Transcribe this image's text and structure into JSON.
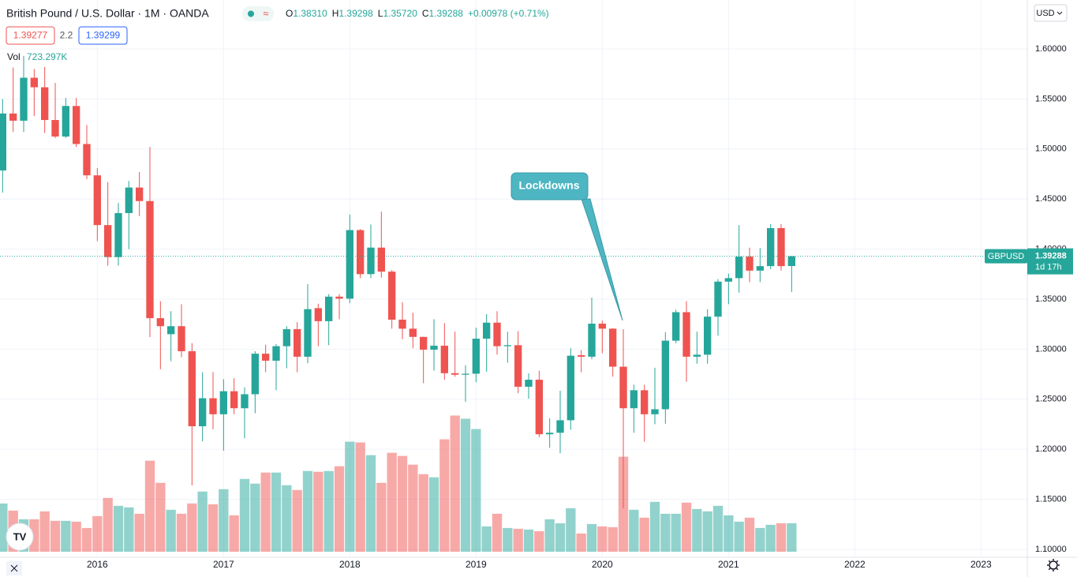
{
  "header": {
    "symbol": "British Pound / U.S. Dollar · 1M · OANDA",
    "ohlc": [
      {
        "key": "O",
        "value": "1.38310"
      },
      {
        "key": "H",
        "value": "1.39298"
      },
      {
        "key": "L",
        "value": "1.35720"
      },
      {
        "key": "C",
        "value": "1.39288"
      }
    ],
    "change": "+0.00978 (+0.71%)",
    "bid": "1.39277",
    "spread": "2.2",
    "ask": "1.39299",
    "volume_label": "Vol",
    "volume_value": "723.297K",
    "currency": "USD",
    "price_tag": {
      "symbol": "GBPUSD",
      "price": "1.39288",
      "countdown": "1d 17h"
    }
  },
  "chart_data": {
    "type": "candlestick",
    "annotation": "Lockdowns",
    "up_color": "#26a69a",
    "down_color": "#ef5350",
    "open": [
      1.4786,
      1.5355,
      1.5283,
      1.5712,
      1.5617,
      1.529,
      1.5125,
      1.543,
      1.505,
      1.4737,
      1.424,
      1.392,
      1.436,
      1.4615,
      1.448,
      1.331,
      1.315,
      1.323,
      1.298,
      1.223,
      1.251,
      1.235,
      1.258,
      1.241,
      1.255,
      1.2955,
      1.2885,
      1.303,
      1.32,
      1.2925,
      1.341,
      1.328,
      1.3525,
      1.3505,
      1.419,
      1.375,
      1.4015,
      1.3775,
      1.3295,
      1.3205,
      1.3123,
      1.2995,
      1.3035,
      1.276,
      1.2745,
      1.2755,
      1.3105,
      1.3265,
      1.303,
      1.304,
      1.2625,
      1.2695,
      1.215,
      1.2165,
      1.229,
      1.294,
      1.2925,
      1.3255,
      1.3205,
      1.2825,
      1.241,
      1.259,
      1.235,
      1.24,
      1.3085,
      1.337,
      1.2925,
      1.2945,
      1.3325,
      1.3675,
      1.371,
      1.3925,
      1.3785,
      1.383,
      1.421,
      1.3831
    ],
    "high": [
      1.5498,
      1.5815,
      1.593,
      1.58,
      1.582,
      1.566,
      1.551,
      1.551,
      1.524,
      1.481,
      1.467,
      1.446,
      1.468,
      1.477,
      1.502,
      1.348,
      1.338,
      1.345,
      1.306,
      1.277,
      1.277,
      1.27,
      1.271,
      1.262,
      1.298,
      1.3045,
      1.305,
      1.323,
      1.327,
      1.365,
      1.3455,
      1.355,
      1.355,
      1.4345,
      1.42,
      1.4245,
      1.4375,
      1.379,
      1.347,
      1.3365,
      1.3125,
      1.33,
      1.326,
      1.3175,
      1.284,
      1.3215,
      1.335,
      1.338,
      1.3175,
      1.318,
      1.276,
      1.2785,
      1.231,
      1.2585,
      1.301,
      1.299,
      1.3515,
      1.3285,
      1.321,
      1.32,
      1.2645,
      1.2645,
      1.2815,
      1.317,
      1.3395,
      1.348,
      1.3175,
      1.34,
      1.37,
      1.3755,
      1.424,
      1.4015,
      1.401,
      1.425,
      1.425,
      1.39298
    ],
    "low": [
      1.4565,
      1.517,
      1.517,
      1.533,
      1.516,
      1.511,
      1.511,
      1.502,
      1.47,
      1.408,
      1.3835,
      1.3835,
      1.4,
      1.433,
      1.312,
      1.28,
      1.288,
      1.292,
      1.164,
      1.208,
      1.22,
      1.1985,
      1.235,
      1.211,
      1.236,
      1.277,
      1.259,
      1.281,
      1.277,
      1.286,
      1.303,
      1.304,
      1.33,
      1.346,
      1.371,
      1.371,
      1.3715,
      1.3205,
      1.31,
      1.301,
      1.266,
      1.2785,
      1.2695,
      1.2725,
      1.2475,
      1.267,
      1.2775,
      1.2945,
      1.2865,
      1.256,
      1.2505,
      1.212,
      1.2015,
      1.196,
      1.2195,
      1.277,
      1.29,
      1.296,
      1.2725,
      1.141,
      1.2165,
      1.2075,
      1.225,
      1.2255,
      1.306,
      1.2675,
      1.2855,
      1.2855,
      1.3135,
      1.345,
      1.3565,
      1.367,
      1.367,
      1.38,
      1.3785,
      1.3572
    ],
    "close": [
      1.5355,
      1.5283,
      1.5712,
      1.5617,
      1.529,
      1.5125,
      1.543,
      1.505,
      1.4737,
      1.424,
      1.392,
      1.436,
      1.4615,
      1.448,
      1.331,
      1.323,
      1.323,
      1.298,
      1.223,
      1.251,
      1.235,
      1.258,
      1.241,
      1.255,
      1.2955,
      1.2885,
      1.303,
      1.32,
      1.2925,
      1.34,
      1.328,
      1.3525,
      1.3505,
      1.419,
      1.375,
      1.4015,
      1.3775,
      1.3295,
      1.3205,
      1.3123,
      1.2995,
      1.3035,
      1.276,
      1.2745,
      1.2755,
      1.3105,
      1.3265,
      1.303,
      1.304,
      1.2625,
      1.2695,
      1.215,
      1.2165,
      1.229,
      1.2935,
      1.2925,
      1.3255,
      1.3205,
      1.2825,
      1.241,
      1.259,
      1.235,
      1.24,
      1.3085,
      1.337,
      1.2925,
      1.2945,
      1.3325,
      1.3675,
      1.371,
      1.3925,
      1.3785,
      1.383,
      1.421,
      1.383,
      1.39288
    ],
    "volume": [
      1225000,
      1045000,
      824000,
      824000,
      1025000,
      784000,
      784000,
      763000,
      603000,
      904000,
      1366000,
      1165000,
      1125000,
      964000,
      2310000,
      1748000,
      1065000,
      964000,
      1225000,
      1527000,
      1205000,
      1587000,
      924000,
      1848000,
      1728000,
      2009000,
      2009000,
      1688000,
      1567000,
      2049000,
      2029000,
      2049000,
      2170000,
      2793000,
      2773000,
      2451000,
      1748000,
      2511000,
      2431000,
      2210000,
      1969000,
      1889000,
      2853000,
      3456000,
      3375000,
      3114000,
      643000,
      964000,
      603000,
      583000,
      563000,
      522000,
      824000,
      723000,
      1105000,
      462000,
      703000,
      643000,
      623000,
      2411000,
      1065000,
      864000,
      1266000,
      964000,
      964000,
      1246000,
      1085000,
      1025000,
      1165000,
      924000,
      763000,
      864000,
      603000,
      683000,
      723000,
      723297
    ],
    "xlim": [
      -0.25,
      97.4
    ],
    "xticks": [
      {
        "value": 9,
        "label": "2016"
      },
      {
        "value": 21,
        "label": "2017"
      },
      {
        "value": 33,
        "label": "2018"
      },
      {
        "value": 45,
        "label": "2019"
      },
      {
        "value": 57,
        "label": "2020"
      },
      {
        "value": 69,
        "label": "2021"
      },
      {
        "value": 81,
        "label": "2022"
      },
      {
        "value": 93,
        "label": "2023"
      }
    ],
    "ylim": [
      1.0921,
      1.6489
    ],
    "yticks": [
      {
        "value": 1.1,
        "label": "1.10000"
      },
      {
        "value": 1.15,
        "label": "1.15000"
      },
      {
        "value": 1.2,
        "label": "1.20000"
      },
      {
        "value": 1.25,
        "label": "1.25000"
      },
      {
        "value": 1.3,
        "label": "1.30000"
      },
      {
        "value": 1.35,
        "label": "1.35000"
      },
      {
        "value": 1.4,
        "label": "1.40000"
      },
      {
        "value": 1.45,
        "label": "1.45000"
      },
      {
        "value": 1.5,
        "label": "1.50000"
      },
      {
        "value": 1.55,
        "label": "1.55000"
      },
      {
        "value": 1.6,
        "label": "1.60000"
      }
    ],
    "volume_ylim": [
      0,
      14000000
    ],
    "grid": true
  }
}
